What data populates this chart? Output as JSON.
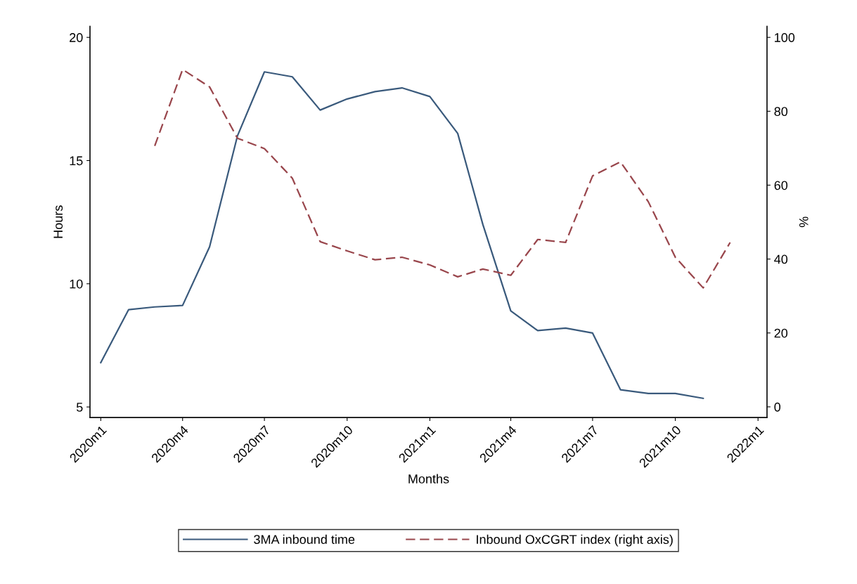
{
  "chart_data": {
    "type": "line",
    "xlabel": "Months",
    "ylabel": "Hours",
    "y2label": "%",
    "x": [
      "2020-01",
      "2020-02",
      "2020-03",
      "2020-04",
      "2020-05",
      "2020-06",
      "2020-07",
      "2020-08",
      "2020-09",
      "2020-10",
      "2020-11",
      "2020-12",
      "2021-01",
      "2021-02",
      "2021-03",
      "2021-04",
      "2021-05",
      "2021-06",
      "2021-07",
      "2021-08",
      "2021-09",
      "2021-10",
      "2021-11",
      "2021-12"
    ],
    "series": [
      {
        "name": "3MA inbound time",
        "color": "#3a5a7c",
        "line_style": "solid",
        "values": [
          6.8,
          8.95,
          9.06,
          9.12,
          11.5,
          16.0,
          18.6,
          18.4,
          17.05,
          17.5,
          17.8,
          17.95,
          17.6,
          16.1,
          12.4,
          8.9,
          8.1,
          8.2,
          8.0,
          5.7,
          5.55,
          5.55,
          5.35,
          null
        ]
      },
      {
        "name": "Inbound OxCGRT index (right axis)",
        "color": "#99464c",
        "line_style": "dashed",
        "axis": "y2",
        "values": [
          null,
          null,
          70.6,
          91.3,
          86.6,
          72.7,
          69.9,
          61.9,
          44.7,
          42.2,
          39.8,
          40.5,
          38.4,
          35.2,
          37.3,
          35.6,
          45.3,
          44.5,
          62.5,
          66.3,
          55.5,
          40.5,
          32.2,
          44.5
        ]
      }
    ],
    "xlim": [
      "2019-12-20",
      "2022-01-11"
    ],
    "xticks": [
      {
        "value": "2020-01",
        "label": "2020m1"
      },
      {
        "value": "2020-04",
        "label": "2020m4"
      },
      {
        "value": "2020-07",
        "label": "2020m7"
      },
      {
        "value": "2020-10",
        "label": "2020m10"
      },
      {
        "value": "2021-01",
        "label": "2021m1"
      },
      {
        "value": "2021-04",
        "label": "2021m4"
      },
      {
        "value": "2021-07",
        "label": "2021m7"
      },
      {
        "value": "2021-10",
        "label": "2021m10"
      },
      {
        "value": "2022-01",
        "label": "2022m1"
      }
    ],
    "ylim": [
      4.57,
      20.45
    ],
    "yticks": [
      5,
      10,
      15,
      20
    ],
    "y2lim": [
      -2.9,
      103
    ],
    "y2ticks": [
      0,
      20,
      40,
      60,
      80,
      100
    ],
    "grid": false,
    "legend": "bottom",
    "marker": "none"
  }
}
